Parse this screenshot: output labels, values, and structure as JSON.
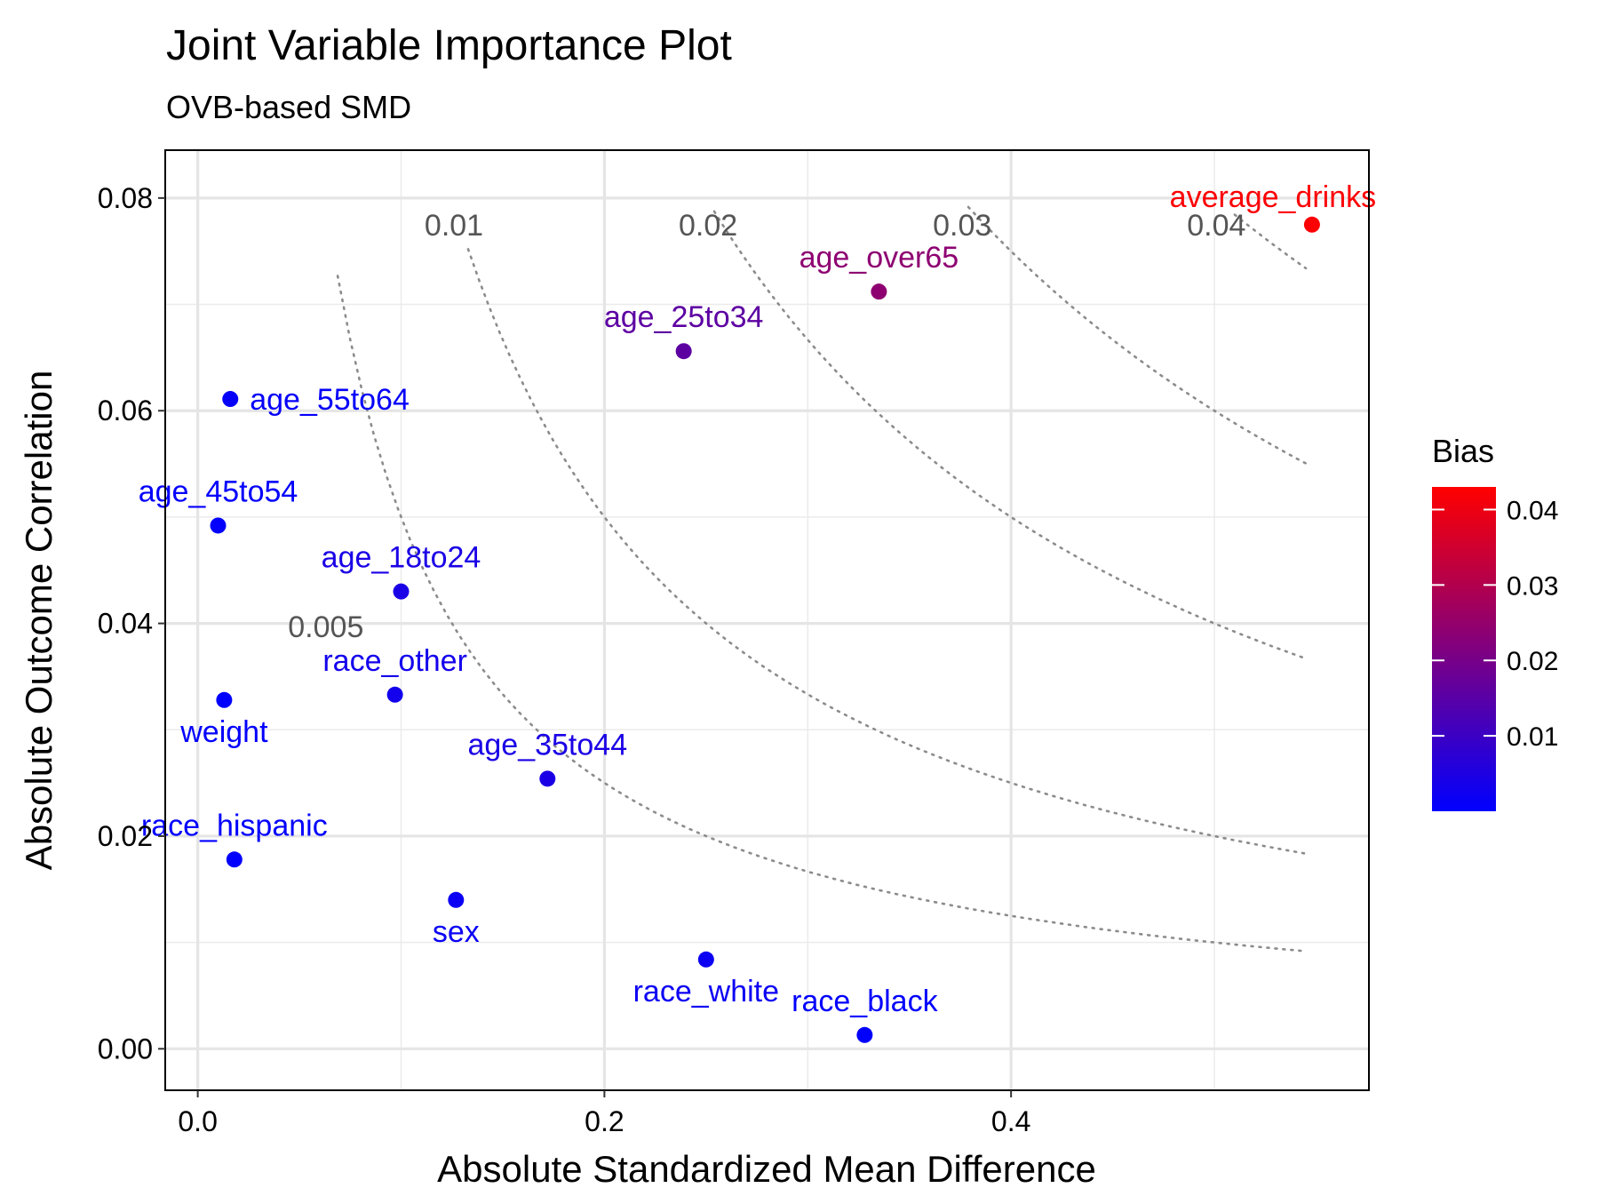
{
  "chart_data": {
    "type": "scatter",
    "title": "Joint Variable Importance Plot",
    "subtitle": "OVB-based SMD",
    "xlabel": "Absolute Standardized Mean Difference",
    "ylabel": "Absolute Outcome Correlation",
    "xlim": [
      -0.016,
      0.576
    ],
    "ylim": [
      -0.0039,
      0.0845
    ],
    "x_ticks": [
      0.0,
      0.2,
      0.4
    ],
    "x_tick_labels": [
      "0.0",
      "0.2",
      "0.4"
    ],
    "y_ticks": [
      0.0,
      0.02,
      0.04,
      0.06,
      0.08
    ],
    "y_tick_labels": [
      "0.00",
      "0.02",
      "0.04",
      "0.06",
      "0.08"
    ],
    "grid": true,
    "points": [
      {
        "label": "average_drinks",
        "x": 0.548,
        "y": 0.0775,
        "bias": 0.0425,
        "label_pos": "above-left"
      },
      {
        "label": "age_over65",
        "x": 0.335,
        "y": 0.0712,
        "bias": 0.024,
        "label_pos": "above"
      },
      {
        "label": "age_25to34",
        "x": 0.239,
        "y": 0.0656,
        "bias": 0.0157,
        "label_pos": "above"
      },
      {
        "label": "age_55to64",
        "x": 0.016,
        "y": 0.0611,
        "bias": 0.001,
        "label_pos": "right"
      },
      {
        "label": "age_45to54",
        "x": 0.01,
        "y": 0.0492,
        "bias": 0.0005,
        "label_pos": "above"
      },
      {
        "label": "age_18to24",
        "x": 0.1,
        "y": 0.043,
        "bias": 0.0043,
        "label_pos": "above"
      },
      {
        "label": "race_other",
        "x": 0.097,
        "y": 0.0333,
        "bias": 0.0032,
        "label_pos": "above"
      },
      {
        "label": "weight",
        "x": 0.013,
        "y": 0.0328,
        "bias": 0.0004,
        "label_pos": "below"
      },
      {
        "label": "age_35to44",
        "x": 0.172,
        "y": 0.0254,
        "bias": 0.0044,
        "label_pos": "above"
      },
      {
        "label": "race_hispanic",
        "x": 0.018,
        "y": 0.0178,
        "bias": 0.0003,
        "label_pos": "above"
      },
      {
        "label": "sex",
        "x": 0.127,
        "y": 0.014,
        "bias": 0.0018,
        "label_pos": "below"
      },
      {
        "label": "race_white",
        "x": 0.25,
        "y": 0.0084,
        "bias": 0.0021,
        "label_pos": "below"
      },
      {
        "label": "race_black",
        "x": 0.328,
        "y": 0.0013,
        "bias": 0.0004,
        "label_pos": "above"
      }
    ],
    "contours": [
      {
        "label": "0.005",
        "level": 0.005,
        "x_from": 0.0688,
        "x_to": 0.545,
        "label_x": 0.063,
        "label_y": 0.0397
      },
      {
        "label": "0.01",
        "level": 0.01,
        "x_from": 0.133,
        "x_to": 0.545,
        "label_x": 0.126,
        "label_y": 0.0775
      },
      {
        "label": "0.02",
        "level": 0.02,
        "x_from": 0.254,
        "x_to": 0.545,
        "label_x": 0.251,
        "label_y": 0.0775
      },
      {
        "label": "0.03",
        "level": 0.03,
        "x_from": 0.379,
        "x_to": 0.545,
        "label_x": 0.376,
        "label_y": 0.0775
      },
      {
        "label": "0.04",
        "level": 0.04,
        "x_from": 0.51,
        "x_to": 0.545,
        "label_x": 0.501,
        "label_y": 0.0775
      }
    ],
    "legend": {
      "title": "Bias",
      "position": "right",
      "min": 0.0,
      "max": 0.043,
      "ticks": [
        0.01,
        0.02,
        0.03,
        0.04
      ],
      "tick_labels": [
        "0.01",
        "0.02",
        "0.03",
        "0.04"
      ],
      "color_low": "#0000ff",
      "color_high": "#ff0000"
    }
  }
}
